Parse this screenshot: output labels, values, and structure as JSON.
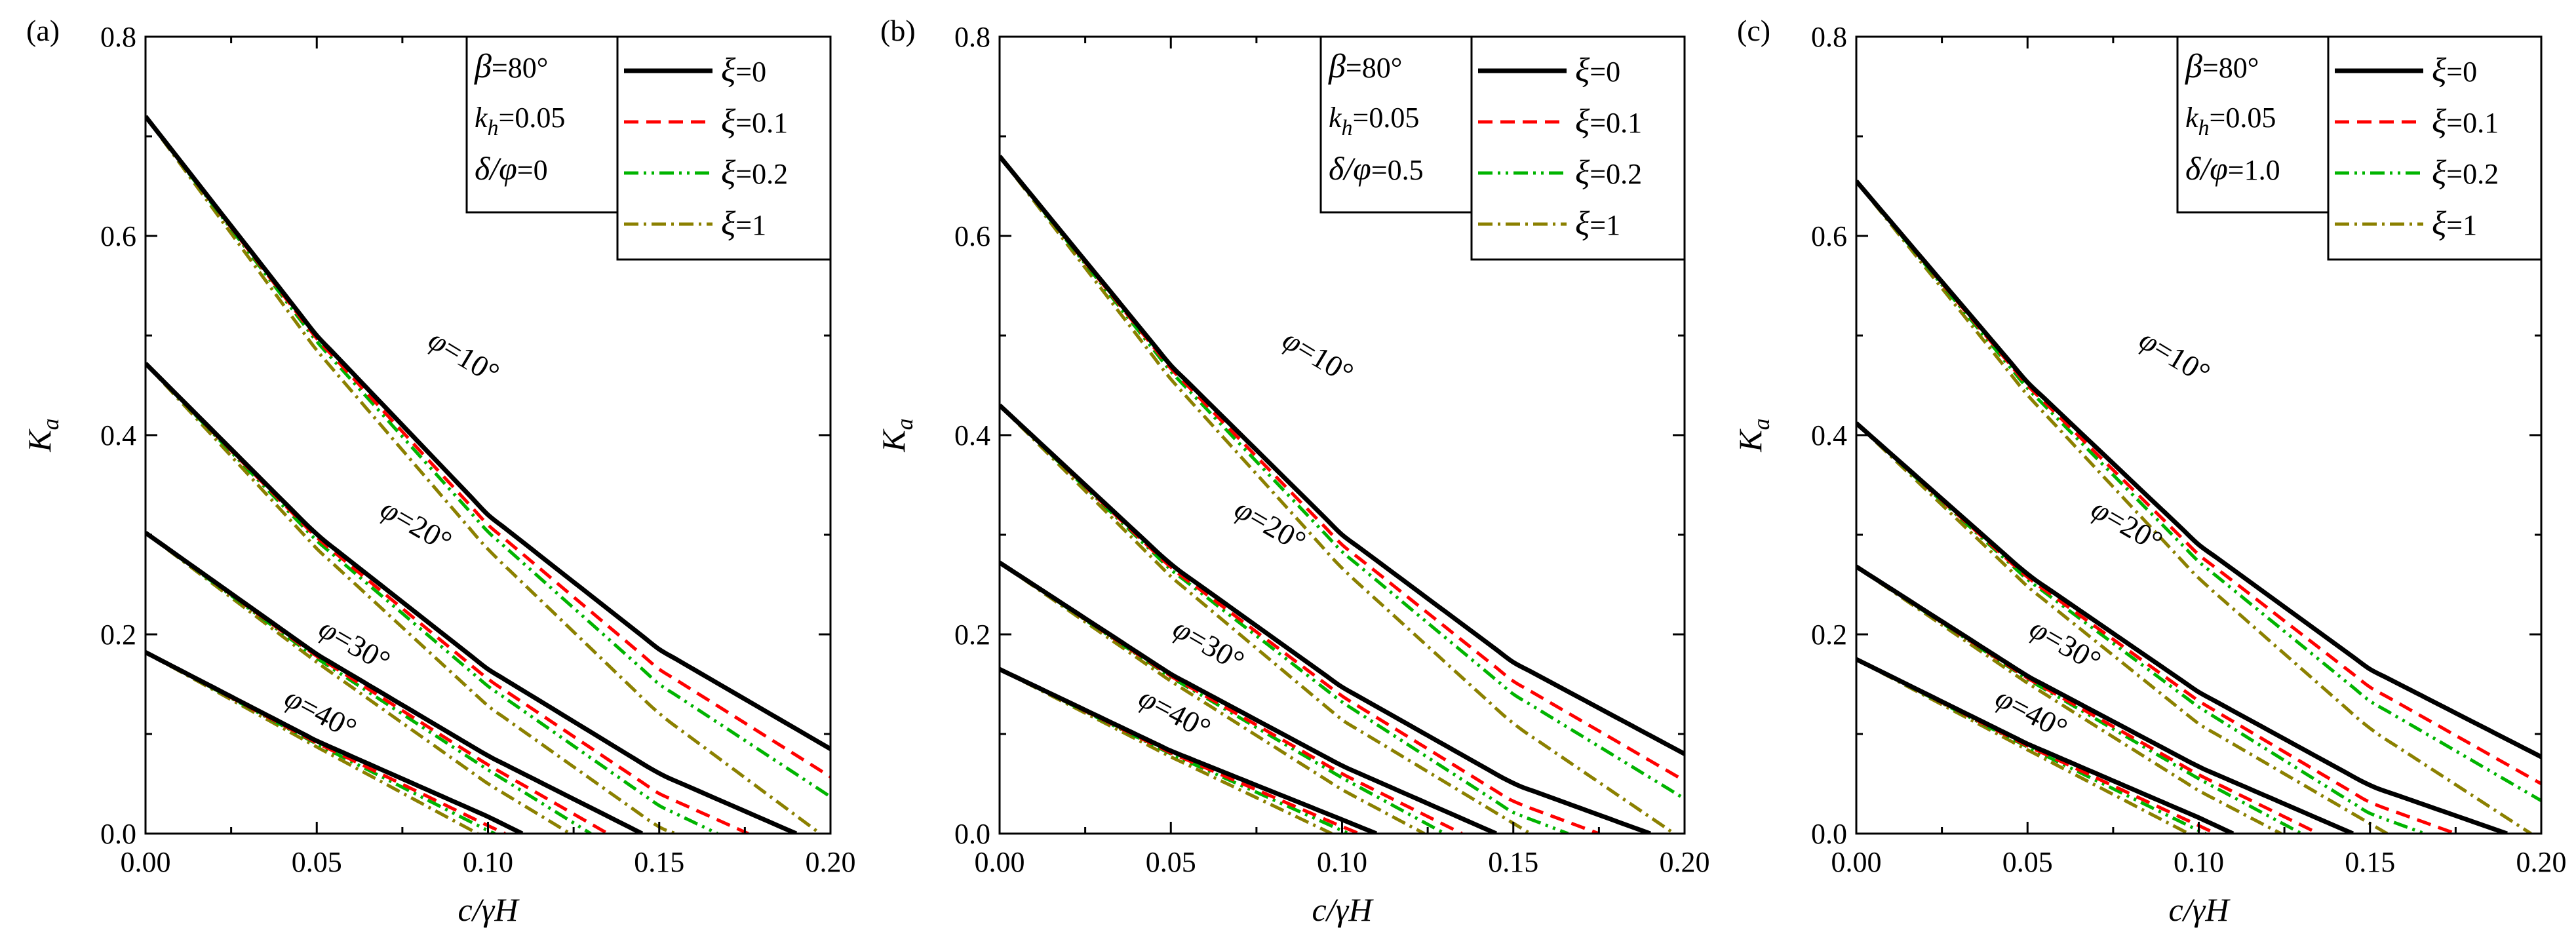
{
  "figure": {
    "panel_labels": [
      "(a)",
      "(b)",
      "(c)"
    ]
  },
  "axes": {
    "x_tick_labels": [
      "0.00",
      "0.05",
      "0.10",
      "0.15",
      "0.20"
    ],
    "y_tick_labels": [
      "0.0",
      "0.2",
      "0.4",
      "0.6",
      "0.8"
    ]
  },
  "styles": {
    "xi_0": {
      "color": "#000000",
      "dash": "none"
    },
    "xi_0.1": {
      "color": "#ff0000",
      "dash": "22 12"
    },
    "xi_0.2": {
      "color": "#00b400",
      "dash": "22 8 4 8 4 8"
    },
    "xi_1": {
      "color": "#8b8000",
      "dash": "22 8 4 8"
    }
  },
  "chart_data": [
    {
      "type": "line",
      "panel": "(a)",
      "xlabel": "c/γH",
      "ylabel": "Ka",
      "xlim": [
        0,
        0.2
      ],
      "ylim": [
        0,
        0.8
      ],
      "params": {
        "beta": "80°",
        "kh": "0.05",
        "delta_phi": "0"
      },
      "legend": {
        "position": "top-right",
        "entries": [
          "ξ=0",
          "ξ=0.1",
          "ξ=0.2",
          "ξ=1"
        ]
      },
      "series": [
        {
          "name": "φ=10°, ξ=0",
          "phi": "10°",
          "xi": "0",
          "x": [
            0,
            0.05,
            0.1,
            0.15,
            0.2
          ],
          "y": [
            0.72,
            0.5,
            0.32,
            0.185,
            0.085
          ]
        },
        {
          "name": "φ=10°, ξ=0.1",
          "phi": "10°",
          "xi": "0.1",
          "x": [
            0,
            0.05,
            0.1,
            0.15,
            0.2
          ],
          "y": [
            0.72,
            0.497,
            0.31,
            0.165,
            0.057
          ]
        },
        {
          "name": "φ=10°, ξ=0.2",
          "phi": "10°",
          "xi": "0.2",
          "x": [
            0,
            0.05,
            0.1,
            0.15,
            0.2
          ],
          "y": [
            0.72,
            0.494,
            0.303,
            0.15,
            0.037
          ]
        },
        {
          "name": "φ=10°, ξ=1",
          "phi": "10°",
          "xi": "1",
          "x": [
            0,
            0.05,
            0.1,
            0.15,
            0.197
          ],
          "y": [
            0.72,
            0.485,
            0.285,
            0.12,
            0.0
          ]
        },
        {
          "name": "φ=20°, ξ=0",
          "phi": "20°",
          "xi": "0",
          "x": [
            0,
            0.05,
            0.1,
            0.15,
            0.19
          ],
          "y": [
            0.472,
            0.3,
            0.165,
            0.06,
            0.0
          ]
        },
        {
          "name": "φ=20°, ξ=0.1",
          "phi": "20°",
          "xi": "0.1",
          "x": [
            0,
            0.05,
            0.1,
            0.15,
            0.176
          ],
          "y": [
            0.472,
            0.297,
            0.155,
            0.04,
            0.0
          ]
        },
        {
          "name": "φ=20°, ξ=0.2",
          "phi": "20°",
          "xi": "0.2",
          "x": [
            0,
            0.05,
            0.1,
            0.15,
            0.167
          ],
          "y": [
            0.472,
            0.294,
            0.148,
            0.028,
            0.0
          ]
        },
        {
          "name": "φ=20°, ξ=1",
          "phi": "20°",
          "xi": "1",
          "x": [
            0,
            0.05,
            0.1,
            0.15,
            0.155
          ],
          "y": [
            0.472,
            0.286,
            0.128,
            0.006,
            0.0
          ]
        },
        {
          "name": "φ=30°, ξ=0",
          "phi": "30°",
          "xi": "0",
          "x": [
            0,
            0.05,
            0.1,
            0.145
          ],
          "y": [
            0.302,
            0.18,
            0.078,
            0.0
          ]
        },
        {
          "name": "φ=30°, ξ=0.1",
          "phi": "30°",
          "xi": "0.1",
          "x": [
            0,
            0.05,
            0.1,
            0.135
          ],
          "y": [
            0.302,
            0.178,
            0.069,
            0.0
          ]
        },
        {
          "name": "φ=30°, ξ=0.2",
          "phi": "30°",
          "xi": "0.2",
          "x": [
            0,
            0.05,
            0.1,
            0.13
          ],
          "y": [
            0.302,
            0.176,
            0.064,
            0.0
          ]
        },
        {
          "name": "φ=30°, ξ=1",
          "phi": "30°",
          "xi": "1",
          "x": [
            0,
            0.05,
            0.1,
            0.124
          ],
          "y": [
            0.302,
            0.172,
            0.05,
            0.0
          ]
        },
        {
          "name": "φ=40°, ξ=0",
          "phi": "40°",
          "xi": "0",
          "x": [
            0,
            0.05,
            0.1,
            0.11
          ],
          "y": [
            0.182,
            0.093,
            0.017,
            0.0
          ]
        },
        {
          "name": "φ=40°, ξ=0.1",
          "phi": "40°",
          "xi": "0.1",
          "x": [
            0,
            0.05,
            0.1,
            0.105
          ],
          "y": [
            0.182,
            0.091,
            0.008,
            0.0
          ]
        },
        {
          "name": "φ=40°, ξ=0.2",
          "phi": "40°",
          "xi": "0.2",
          "x": [
            0,
            0.05,
            0.1,
            0.102
          ],
          "y": [
            0.182,
            0.09,
            0.003,
            0.0
          ]
        },
        {
          "name": "φ=40°, ξ=1",
          "phi": "40°",
          "xi": "1",
          "x": [
            0,
            0.05,
            0.097
          ],
          "y": [
            0.182,
            0.087,
            0.0
          ]
        }
      ]
    },
    {
      "type": "line",
      "panel": "(b)",
      "xlabel": "c/γH",
      "ylabel": "Ka",
      "xlim": [
        0,
        0.2
      ],
      "ylim": [
        0,
        0.8
      ],
      "params": {
        "beta": "80°",
        "kh": "0.05",
        "delta_phi": "0.5"
      },
      "legend": {
        "position": "top-right",
        "entries": [
          "ξ=0",
          "ξ=0.1",
          "ξ=0.2",
          "ξ=1"
        ]
      },
      "series": [
        {
          "name": "φ=10°, ξ=0",
          "phi": "10°",
          "xi": "0",
          "x": [
            0,
            0.05,
            0.1,
            0.15,
            0.2
          ],
          "y": [
            0.68,
            0.47,
            0.3,
            0.172,
            0.08
          ]
        },
        {
          "name": "φ=10°, ξ=0.1",
          "phi": "10°",
          "xi": "0.1",
          "x": [
            0,
            0.05,
            0.1,
            0.15,
            0.2
          ],
          "y": [
            0.68,
            0.467,
            0.29,
            0.153,
            0.053
          ]
        },
        {
          "name": "φ=10°, ξ=0.2",
          "phi": "10°",
          "xi": "0.2",
          "x": [
            0,
            0.05,
            0.1,
            0.15,
            0.2
          ],
          "y": [
            0.68,
            0.464,
            0.283,
            0.14,
            0.035
          ]
        },
        {
          "name": "φ=10°, ξ=1",
          "phi": "10°",
          "xi": "1",
          "x": [
            0,
            0.05,
            0.1,
            0.15,
            0.197
          ],
          "y": [
            0.68,
            0.456,
            0.266,
            0.11,
            0.0
          ]
        },
        {
          "name": "φ=20°, ξ=0",
          "phi": "20°",
          "xi": "0",
          "x": [
            0,
            0.05,
            0.1,
            0.15,
            0.19
          ],
          "y": [
            0.43,
            0.27,
            0.147,
            0.05,
            0.0
          ]
        },
        {
          "name": "φ=20°, ξ=0.1",
          "phi": "20°",
          "xi": "0.1",
          "x": [
            0,
            0.05,
            0.1,
            0.15,
            0.175
          ],
          "y": [
            0.43,
            0.267,
            0.138,
            0.032,
            0.0
          ]
        },
        {
          "name": "φ=20°, ξ=0.2",
          "phi": "20°",
          "xi": "0.2",
          "x": [
            0,
            0.05,
            0.1,
            0.15,
            0.166
          ],
          "y": [
            0.43,
            0.265,
            0.132,
            0.021,
            0.0
          ]
        },
        {
          "name": "φ=20°, ξ=1",
          "phi": "20°",
          "xi": "1",
          "x": [
            0,
            0.05,
            0.1,
            0.155
          ],
          "y": [
            0.43,
            0.258,
            0.114,
            0.0
          ]
        },
        {
          "name": "φ=30°, ξ=0",
          "phi": "30°",
          "xi": "0",
          "x": [
            0,
            0.05,
            0.1,
            0.145
          ],
          "y": [
            0.272,
            0.16,
            0.068,
            0.0
          ]
        },
        {
          "name": "φ=30°, ξ=0.1",
          "phi": "30°",
          "xi": "0.1",
          "x": [
            0,
            0.05,
            0.1,
            0.135
          ],
          "y": [
            0.272,
            0.158,
            0.06,
            0.0
          ]
        },
        {
          "name": "φ=30°, ξ=0.2",
          "phi": "30°",
          "xi": "0.2",
          "x": [
            0,
            0.05,
            0.1,
            0.13
          ],
          "y": [
            0.272,
            0.157,
            0.056,
            0.0
          ]
        },
        {
          "name": "φ=30°, ξ=1",
          "phi": "30°",
          "xi": "1",
          "x": [
            0,
            0.05,
            0.1,
            0.124
          ],
          "y": [
            0.272,
            0.153,
            0.044,
            0.0
          ]
        },
        {
          "name": "φ=40°, ξ=0",
          "phi": "40°",
          "xi": "0",
          "x": [
            0,
            0.05,
            0.1,
            0.11
          ],
          "y": [
            0.165,
            0.083,
            0.014,
            0.0
          ]
        },
        {
          "name": "φ=40°, ξ=0.1",
          "phi": "40°",
          "xi": "0.1",
          "x": [
            0,
            0.05,
            0.1,
            0.105
          ],
          "y": [
            0.165,
            0.081,
            0.007,
            0.0
          ]
        },
        {
          "name": "φ=40°, ξ=0.2",
          "phi": "40°",
          "xi": "0.2",
          "x": [
            0,
            0.05,
            0.1,
            0.102
          ],
          "y": [
            0.165,
            0.08,
            0.003,
            0.0
          ]
        },
        {
          "name": "φ=40°, ξ=1",
          "phi": "40°",
          "xi": "1",
          "x": [
            0,
            0.05,
            0.097
          ],
          "y": [
            0.165,
            0.077,
            0.0
          ]
        }
      ]
    },
    {
      "type": "line",
      "panel": "(c)",
      "xlabel": "c/γH",
      "ylabel": "Ka",
      "xlim": [
        0,
        0.2
      ],
      "ylim": [
        0,
        0.8
      ],
      "params": {
        "beta": "80°",
        "kh": "0.05",
        "delta_phi": "1.0"
      },
      "legend": {
        "position": "top-right",
        "entries": [
          "ξ=0",
          "ξ=0.1",
          "ξ=0.2",
          "ξ=1"
        ]
      },
      "series": [
        {
          "name": "φ=10°, ξ=0",
          "phi": "10°",
          "xi": "0",
          "x": [
            0,
            0.05,
            0.1,
            0.15,
            0.2
          ],
          "y": [
            0.655,
            0.453,
            0.29,
            0.165,
            0.077
          ]
        },
        {
          "name": "φ=10°, ξ=0.1",
          "phi": "10°",
          "xi": "0.1",
          "x": [
            0,
            0.05,
            0.1,
            0.15,
            0.2
          ],
          "y": [
            0.655,
            0.45,
            0.28,
            0.147,
            0.05
          ]
        },
        {
          "name": "φ=10°, ξ=0.2",
          "phi": "10°",
          "xi": "0.2",
          "x": [
            0,
            0.05,
            0.1,
            0.15,
            0.2
          ],
          "y": [
            0.655,
            0.447,
            0.273,
            0.133,
            0.033
          ]
        },
        {
          "name": "φ=10°, ξ=1",
          "phi": "10°",
          "xi": "1",
          "x": [
            0,
            0.05,
            0.1,
            0.15,
            0.197
          ],
          "y": [
            0.655,
            0.44,
            0.256,
            0.105,
            0.0
          ]
        },
        {
          "name": "φ=20°, ξ=0",
          "phi": "20°",
          "xi": "0",
          "x": [
            0,
            0.05,
            0.1,
            0.15,
            0.19
          ],
          "y": [
            0.412,
            0.26,
            0.142,
            0.048,
            0.0
          ]
        },
        {
          "name": "φ=20°, ξ=0.1",
          "phi": "20°",
          "xi": "0.1",
          "x": [
            0,
            0.05,
            0.1,
            0.15,
            0.175
          ],
          "y": [
            0.412,
            0.257,
            0.133,
            0.031,
            0.0
          ]
        },
        {
          "name": "φ=20°, ξ=0.2",
          "phi": "20°",
          "xi": "0.2",
          "x": [
            0,
            0.05,
            0.1,
            0.15,
            0.166
          ],
          "y": [
            0.412,
            0.255,
            0.127,
            0.02,
            0.0
          ]
        },
        {
          "name": "φ=20°, ξ=1",
          "phi": "20°",
          "xi": "1",
          "x": [
            0,
            0.05,
            0.1,
            0.155
          ],
          "y": [
            0.412,
            0.248,
            0.11,
            0.0
          ]
        },
        {
          "name": "φ=30°, ξ=0",
          "phi": "30°",
          "xi": "0",
          "x": [
            0,
            0.05,
            0.1,
            0.145
          ],
          "y": [
            0.268,
            0.158,
            0.067,
            0.0
          ]
        },
        {
          "name": "φ=30°, ξ=0.1",
          "phi": "30°",
          "xi": "0.1",
          "x": [
            0,
            0.05,
            0.1,
            0.135
          ],
          "y": [
            0.268,
            0.156,
            0.059,
            0.0
          ]
        },
        {
          "name": "φ=30°, ξ=0.2",
          "phi": "30°",
          "xi": "0.2",
          "x": [
            0,
            0.05,
            0.1,
            0.13
          ],
          "y": [
            0.268,
            0.155,
            0.055,
            0.0
          ]
        },
        {
          "name": "φ=30°, ξ=1",
          "phi": "30°",
          "xi": "1",
          "x": [
            0,
            0.05,
            0.1,
            0.124
          ],
          "y": [
            0.268,
            0.151,
            0.043,
            0.0
          ]
        },
        {
          "name": "φ=40°, ξ=0",
          "phi": "40°",
          "xi": "0",
          "x": [
            0,
            0.05,
            0.1,
            0.11
          ],
          "y": [
            0.175,
            0.09,
            0.016,
            0.0
          ]
        },
        {
          "name": "φ=40°, ξ=0.1",
          "phi": "40°",
          "xi": "0.1",
          "x": [
            0,
            0.05,
            0.1,
            0.105
          ],
          "y": [
            0.175,
            0.088,
            0.008,
            0.0
          ]
        },
        {
          "name": "φ=40°, ξ=0.2",
          "phi": "40°",
          "xi": "0.2",
          "x": [
            0,
            0.05,
            0.1,
            0.102
          ],
          "y": [
            0.175,
            0.087,
            0.003,
            0.0
          ]
        },
        {
          "name": "φ=40°, ξ=1",
          "phi": "40°",
          "xi": "1",
          "x": [
            0,
            0.05,
            0.097
          ],
          "y": [
            0.175,
            0.084,
            0.0
          ]
        }
      ]
    }
  ]
}
